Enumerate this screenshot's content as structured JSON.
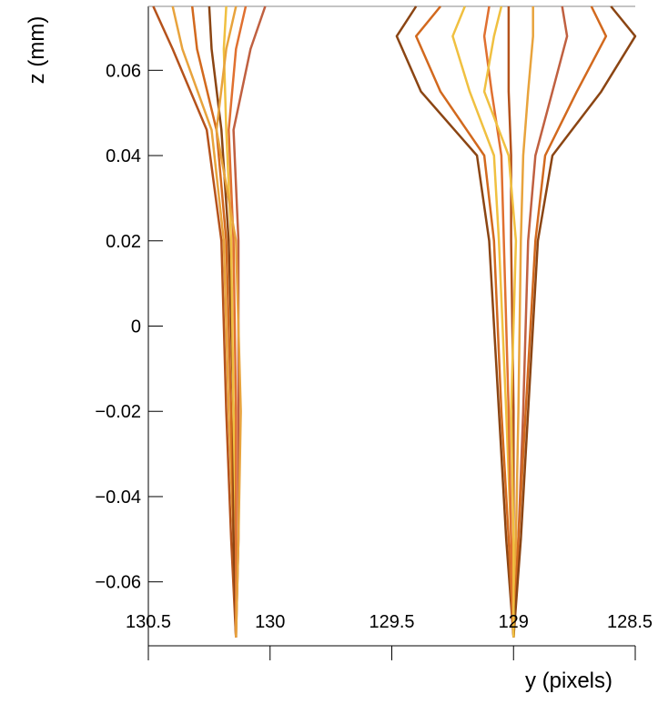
{
  "chart_data": {
    "type": "line",
    "x_label": "y (pixels)",
    "y_label": "z (mm)",
    "xlim": [
      130.5,
      128.5
    ],
    "xticks": [
      130.5,
      130,
      129.5,
      129,
      128.5
    ],
    "ylim": [
      -0.075,
      0.075
    ],
    "yticks": [
      {
        "value": -0.06,
        "label": "−0.06"
      },
      {
        "value": -0.04,
        "label": "−0.04"
      },
      {
        "value": -0.02,
        "label": "−0.02"
      },
      0,
      0.02,
      0.04,
      0.06
    ],
    "series": [
      {
        "color": "#b5521b",
        "x": [
          130.48,
          130.4,
          130.26,
          130.2,
          130.18,
          130.16,
          130.14
        ],
        "values": [
          0.075,
          0.065,
          0.046,
          0.02,
          -0.02,
          -0.05,
          -0.073
        ]
      },
      {
        "color": "#e8a33c",
        "x": [
          130.4,
          130.36,
          130.24,
          130.19,
          130.17,
          130.15,
          130.14
        ],
        "values": [
          0.075,
          0.065,
          0.046,
          0.02,
          -0.02,
          -0.05,
          -0.073
        ]
      },
      {
        "color": "#d2691e",
        "x": [
          130.32,
          130.3,
          130.22,
          130.18,
          130.16,
          130.15,
          130.14
        ],
        "values": [
          0.075,
          0.065,
          0.046,
          0.02,
          -0.02,
          -0.05,
          -0.073
        ]
      },
      {
        "color": "#8b4513",
        "x": [
          130.25,
          130.24,
          130.2,
          130.17,
          130.15,
          130.15,
          130.14
        ],
        "values": [
          0.075,
          0.065,
          0.046,
          0.02,
          -0.02,
          -0.05,
          -0.073
        ]
      },
      {
        "color": "#f0c040",
        "x": [
          130.18,
          130.19,
          130.18,
          130.16,
          130.15,
          130.14,
          130.14
        ],
        "values": [
          0.075,
          0.065,
          0.046,
          0.02,
          -0.02,
          -0.05,
          -0.073
        ]
      },
      {
        "color": "#e07030",
        "x": [
          130.1,
          130.14,
          130.17,
          130.15,
          130.14,
          130.14,
          130.14
        ],
        "values": [
          0.075,
          0.065,
          0.046,
          0.02,
          -0.02,
          -0.05,
          -0.073
        ]
      },
      {
        "color": "#c06040",
        "x": [
          130.02,
          130.08,
          130.15,
          130.13,
          130.13,
          130.13,
          130.14
        ],
        "values": [
          0.075,
          0.065,
          0.046,
          0.02,
          -0.02,
          -0.05,
          -0.073
        ]
      },
      {
        "color": "#e8a33c",
        "x": [
          130.14,
          130.18,
          130.22,
          130.14,
          130.12,
          130.13,
          130.14
        ],
        "values": [
          0.075,
          0.065,
          0.046,
          0.02,
          -0.02,
          -0.05,
          -0.073
        ]
      },
      {
        "color": "#8b4513",
        "x": [
          129.4,
          129.48,
          129.38,
          129.15,
          129.1,
          129.06,
          129.03,
          129.0
        ],
        "values": [
          0.075,
          0.068,
          0.055,
          0.04,
          0.02,
          -0.02,
          -0.05,
          -0.073
        ]
      },
      {
        "color": "#d2691e",
        "x": [
          129.3,
          129.4,
          129.3,
          129.12,
          129.08,
          129.05,
          129.02,
          129.0
        ],
        "values": [
          0.075,
          0.068,
          0.055,
          0.04,
          0.02,
          -0.02,
          -0.05,
          -0.073
        ]
      },
      {
        "color": "#f0c040",
        "x": [
          129.2,
          129.25,
          129.18,
          129.08,
          129.06,
          129.03,
          129.01,
          129.0
        ],
        "values": [
          0.075,
          0.068,
          0.055,
          0.04,
          0.02,
          -0.02,
          -0.05,
          -0.073
        ]
      },
      {
        "color": "#e07030",
        "x": [
          129.1,
          129.12,
          129.09,
          129.05,
          129.04,
          129.02,
          129.01,
          129.0
        ],
        "values": [
          0.075,
          0.068,
          0.055,
          0.04,
          0.02,
          -0.02,
          -0.05,
          -0.073
        ]
      },
      {
        "color": "#b5521b",
        "x": [
          129.02,
          129.02,
          129.02,
          129.01,
          129.01,
          129.0,
          129.0,
          129.0
        ],
        "values": [
          0.075,
          0.068,
          0.055,
          0.04,
          0.02,
          -0.02,
          -0.05,
          -0.073
        ]
      },
      {
        "color": "#e8a33c",
        "x": [
          128.92,
          128.92,
          128.94,
          128.96,
          128.97,
          128.98,
          128.99,
          129.0
        ],
        "values": [
          0.075,
          0.068,
          0.055,
          0.04,
          0.02,
          -0.02,
          -0.05,
          -0.073
        ]
      },
      {
        "color": "#c06040",
        "x": [
          128.8,
          128.78,
          128.84,
          128.91,
          128.94,
          128.96,
          128.98,
          129.0
        ],
        "values": [
          0.075,
          0.068,
          0.055,
          0.04,
          0.02,
          -0.02,
          -0.05,
          -0.073
        ]
      },
      {
        "color": "#d2691e",
        "x": [
          128.68,
          128.62,
          128.74,
          128.87,
          128.91,
          128.95,
          128.98,
          129.0
        ],
        "values": [
          0.075,
          0.068,
          0.055,
          0.04,
          0.02,
          -0.02,
          -0.05,
          -0.073
        ]
      },
      {
        "color": "#8b4513",
        "x": [
          128.6,
          128.5,
          128.64,
          128.84,
          128.9,
          128.94,
          128.97,
          129.0
        ],
        "values": [
          0.075,
          0.068,
          0.055,
          0.04,
          0.02,
          -0.02,
          -0.05,
          -0.073
        ]
      },
      {
        "color": "#f0c040",
        "x": [
          129.05,
          129.08,
          129.12,
          129.02,
          128.99,
          129.01,
          129.0,
          129.0
        ],
        "values": [
          0.075,
          0.068,
          0.055,
          0.04,
          0.02,
          -0.02,
          -0.05,
          -0.073
        ]
      }
    ]
  }
}
